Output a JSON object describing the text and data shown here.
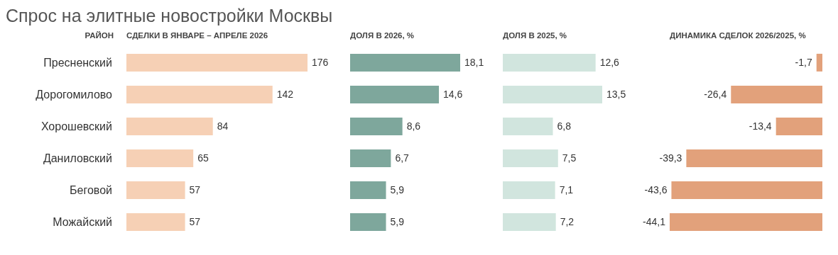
{
  "chart_data": [
    {
      "type": "bar",
      "orientation": "horizontal",
      "title": "Спрос на элитные новостройки Москвы",
      "subtitle": "СДЕЛКИ В ЯНВАРЕ – АПРЕЛЕ 2026",
      "ylabel": "РАЙОН",
      "categories": [
        "Пресненский",
        "Дорогомилово",
        "Хорошевский",
        "Даниловский",
        "Беговой",
        "Можайский"
      ],
      "values": [
        176,
        142,
        84,
        65,
        57,
        57
      ],
      "value_labels": [
        "176",
        "142",
        "84",
        "65",
        "57",
        "57"
      ],
      "color": "#f6d0b5",
      "tick_labels": "y",
      "grid": false,
      "legend": false
    },
    {
      "type": "bar",
      "orientation": "horizontal",
      "subtitle": "ДОЛЯ В 2026, %",
      "values": [
        18.1,
        14.6,
        8.6,
        6.7,
        5.9,
        5.9
      ],
      "value_labels": [
        "18,1",
        "14,6",
        "8,6",
        "6,7",
        "5,9",
        "5,9"
      ],
      "color": "#7ea79c",
      "tick_labels": false,
      "grid": false,
      "legend": false
    },
    {
      "type": "bar",
      "orientation": "horizontal",
      "subtitle": "ДОЛЯ В 2025, %",
      "values": [
        12.6,
        13.5,
        6.8,
        7.5,
        7.1,
        7.2
      ],
      "value_labels": [
        "12,6",
        "13,5",
        "6,8",
        "7,5",
        "7,1",
        "7,2"
      ],
      "color": "#d1e5de",
      "tick_labels": false,
      "grid": false,
      "legend": false
    },
    {
      "type": "bar",
      "orientation": "horizontal",
      "subtitle": "ДИНАМИКА СДЕЛОК 2026/2025, %",
      "values": [
        -1.7,
        -26.4,
        -13.4,
        -39.3,
        -43.6,
        -44.1
      ],
      "value_labels": [
        "-1,7",
        "-26,4",
        "-13,4",
        "-39,3",
        "-43,6",
        "-44,1"
      ],
      "color": "#e2a17b",
      "tick_labels": false,
      "grid": false,
      "legend": false
    }
  ]
}
